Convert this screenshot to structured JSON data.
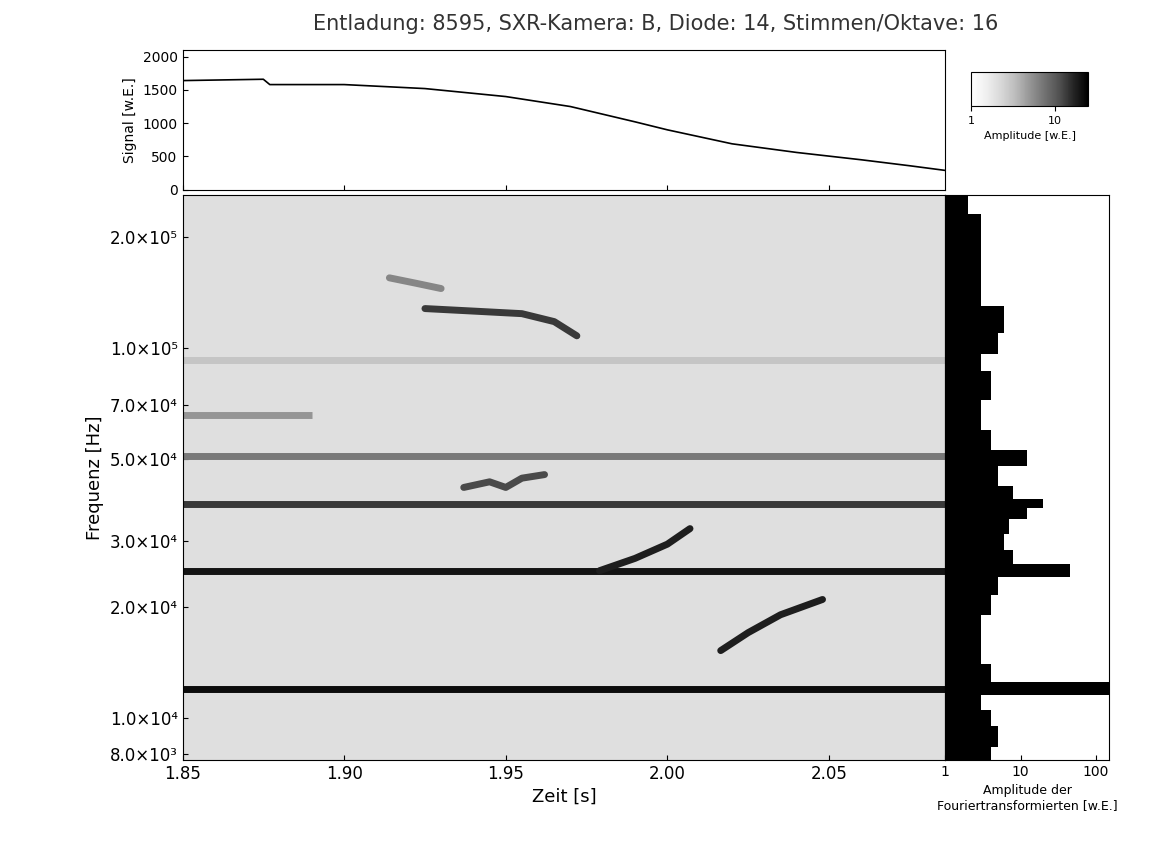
{
  "title": "Entladung: 8595, SXR-Kamera: B, Diode: 14, Stimmen/Oktave: 16",
  "chart_data": [
    {
      "type": "line",
      "ylabel": "Signal [w.E.]",
      "color": "black",
      "x": [
        1.85,
        1.875,
        1.877,
        1.9,
        1.925,
        1.95,
        1.97,
        1.99,
        2.0,
        2.02,
        2.04,
        2.06,
        2.075,
        2.086
      ],
      "values": [
        1640,
        1660,
        1580,
        1580,
        1520,
        1400,
        1250,
        1020,
        900,
        690,
        560,
        450,
        360,
        290
      ],
      "xlim": [
        1.85,
        2.086
      ],
      "xticks": [
        1.85,
        1.9,
        1.95,
        2.0,
        2.05
      ],
      "ylim": [
        0,
        2100
      ],
      "yticks": [
        0,
        500,
        1000,
        1500,
        2000
      ],
      "tick_labels": "y"
    },
    {
      "type": "heatmap",
      "xlabel": "Zeit [s]",
      "ylabel": "Frequenz [Hz]",
      "log": "y",
      "color": "Greys",
      "xlim": [
        1.85,
        2.086
      ],
      "xticks": [
        1.85,
        {
          "value": 1.9,
          "label": "1.90"
        },
        1.95,
        {
          "value": 2.0,
          "label": "2.00"
        },
        2.05
      ],
      "ylim": [
        7700,
        260000
      ],
      "yticks": [
        {
          "value": 8000,
          "label": "8.0×10³"
        },
        {
          "value": 10000,
          "label": "1.0×10⁴"
        },
        {
          "value": 20000,
          "label": "2.0×10⁴"
        },
        {
          "value": 30000,
          "label": "3.0×10⁴"
        },
        {
          "value": 50000,
          "label": "5.0×10⁴"
        },
        {
          "value": 70000,
          "label": "7.0×10⁴"
        },
        {
          "value": 100000,
          "label": "1.0×10⁵"
        },
        {
          "value": 200000,
          "label": "2.0×10⁵"
        }
      ],
      "background_amplitude": 2,
      "modes": [
        {
          "frequency": 12000,
          "t_start": 1.85,
          "t_end": 2.086,
          "amplitude": 22
        },
        {
          "frequency": 25000,
          "t_start": 1.85,
          "t_end": 2.086,
          "amplitude": 20
        },
        {
          "frequency": 38000,
          "t_start": 1.85,
          "t_end": 2.086,
          "amplitude": 14
        },
        {
          "frequency": 51000,
          "t_start": 1.85,
          "t_end": 2.086,
          "amplitude": 7
        },
        {
          "frequency": 66000,
          "t_start": 1.85,
          "t_end": 1.89,
          "amplitude": 5
        },
        {
          "frequency": 93000,
          "t_start": 1.85,
          "t_end": 2.086,
          "amplitude": 3
        }
      ],
      "chirps": [
        {
          "t": [
            2.0165,
            2.025,
            2.035,
            2.048
          ],
          "frequency": [
            15200,
            17000,
            19000,
            20900
          ],
          "amplitude": 18
        },
        {
          "t": [
            1.979,
            1.99,
            2.0,
            2.007
          ],
          "frequency": [
            25000,
            27000,
            29500,
            32500
          ],
          "amplitude": 18
        },
        {
          "t": [
            1.937,
            1.945,
            1.95,
            1.955,
            1.962
          ],
          "frequency": [
            42000,
            43500,
            42000,
            44500,
            45500
          ],
          "amplitude": 12
        },
        {
          "t": [
            1.925,
            1.94,
            1.955,
            1.965,
            1.972
          ],
          "frequency": [
            128000,
            126000,
            124000,
            118000,
            108000
          ],
          "amplitude": 14
        },
        {
          "t": [
            1.914,
            1.922,
            1.93
          ],
          "frequency": [
            155000,
            150000,
            145000
          ],
          "amplitude": 6
        }
      ],
      "colorbar": {
        "label": "Amplitude [w.E.]",
        "range": [
          1,
          25
        ],
        "ticks": [
          1,
          10
        ],
        "log": true
      }
    },
    {
      "type": "area",
      "orientation": "horizontal",
      "log": true,
      "color": "black",
      "xlabel": "Amplitude der\nFouriertransformierten [w.E.]",
      "frequency": [
        7700,
        9000,
        10000,
        11000,
        12000,
        13000,
        15000,
        18000,
        20000,
        23000,
        25000,
        27000,
        30000,
        33000,
        36000,
        38000,
        40000,
        45000,
        51000,
        55000,
        65000,
        80000,
        93000,
        100000,
        120000,
        140000,
        170000,
        200000,
        260000
      ],
      "values": [
        4,
        5,
        4,
        3,
        150,
        4,
        3,
        3,
        4,
        5,
        45,
        8,
        6,
        7,
        12,
        20,
        8,
        5,
        12,
        4,
        3,
        4,
        3,
        5,
        6,
        3,
        3,
        3,
        2
      ],
      "xlim": [
        1,
        150
      ],
      "xticks": [
        1,
        10,
        100
      ],
      "ylim": [
        7700,
        260000
      ],
      "tick_labels": "x"
    }
  ]
}
